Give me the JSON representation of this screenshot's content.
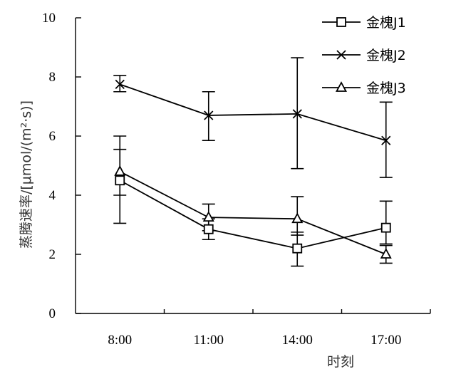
{
  "chart_data": {
    "type": "line",
    "title": "",
    "xlabel": "时刻",
    "ylabel": "蒸腾速率/[μmol/(m²·s)]",
    "categories": [
      "8:00",
      "11:00",
      "14:00",
      "17:00"
    ],
    "ylim": [
      0,
      10
    ],
    "yticks": [
      "0",
      "2",
      "4",
      "6",
      "8",
      "10"
    ],
    "grid": false,
    "legend_position": "top-right",
    "series": [
      {
        "name": "金槐J1",
        "marker": "square",
        "values": [
          4.5,
          2.85,
          2.2,
          2.9
        ],
        "err_low": [
          1.45,
          0.35,
          0.6,
          0.55
        ],
        "err_high": [
          1.5,
          0.35,
          0.55,
          0.9
        ]
      },
      {
        "name": "金槐J2",
        "marker": "x",
        "values": [
          7.75,
          6.7,
          6.75,
          5.85
        ],
        "err_low": [
          0.25,
          0.85,
          1.85,
          1.25
        ],
        "err_high": [
          0.3,
          0.8,
          1.9,
          1.3
        ]
      },
      {
        "name": "金槐J3",
        "marker": "triangle",
        "values": [
          4.8,
          3.25,
          3.2,
          2.0
        ],
        "err_low": [
          0.8,
          0.45,
          0.55,
          0.3
        ],
        "err_high": [
          0.75,
          0.45,
          0.75,
          0.3
        ]
      }
    ],
    "colors": {
      "line": "#000000",
      "ylabel": "#333333"
    }
  }
}
